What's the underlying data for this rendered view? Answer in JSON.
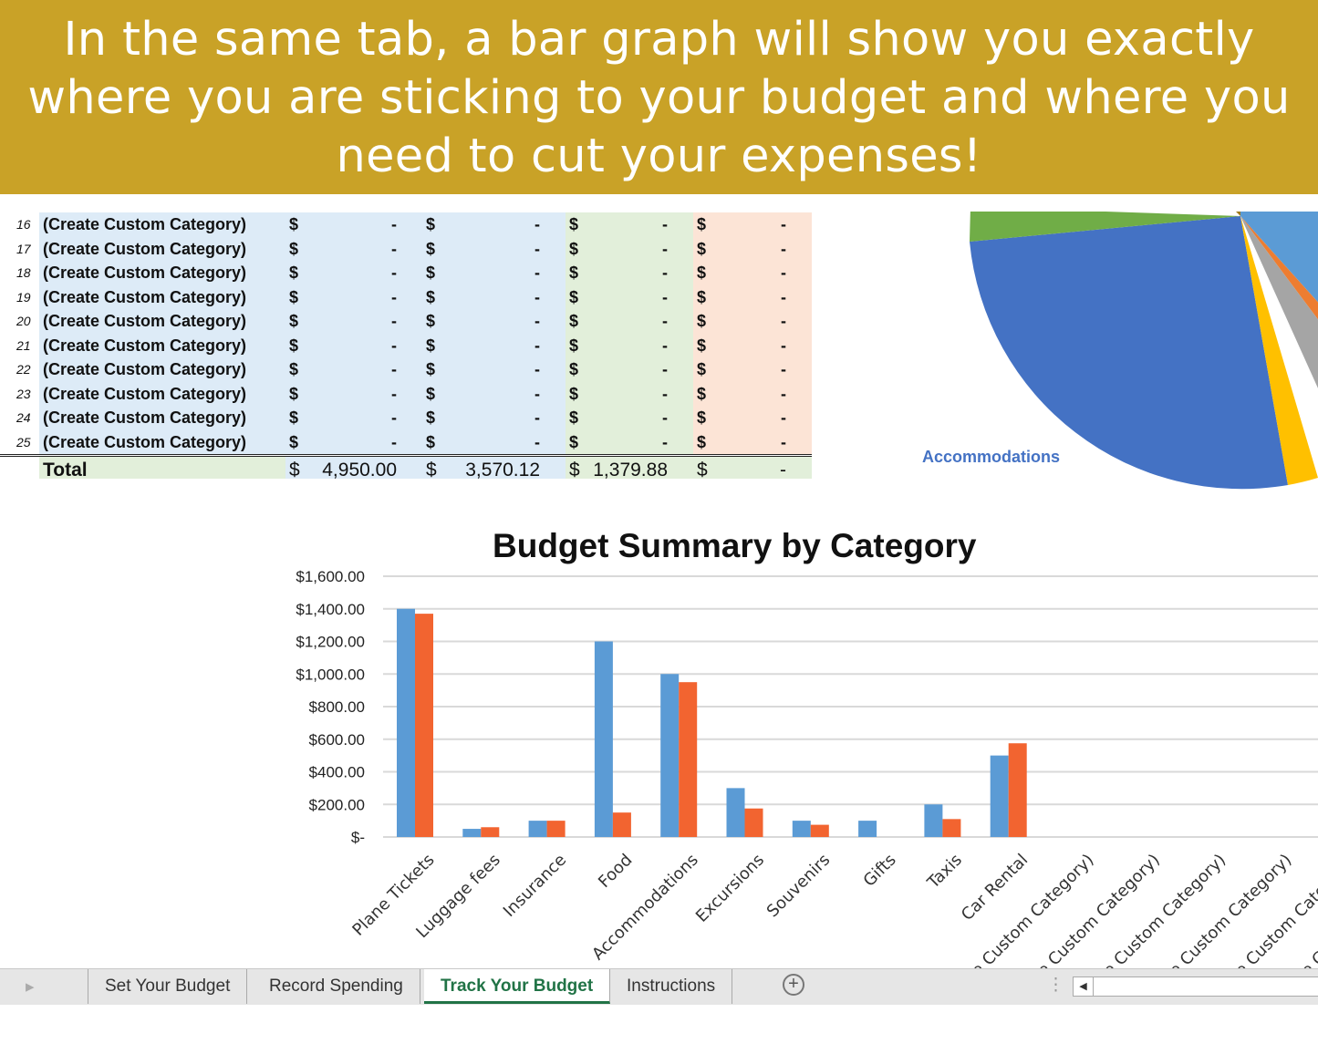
{
  "banner": {
    "text": "In the same tab, a bar graph will show you exactly where you are sticking to your budget and where you need to cut your expenses!"
  },
  "table": {
    "rows": [
      {
        "num": "16",
        "category": "(Create Custom Category)",
        "v1": "-",
        "v2": "-",
        "v3": "-",
        "v4": "-"
      },
      {
        "num": "17",
        "category": "(Create Custom Category)",
        "v1": "-",
        "v2": "-",
        "v3": "-",
        "v4": "-"
      },
      {
        "num": "18",
        "category": "(Create Custom Category)",
        "v1": "-",
        "v2": "-",
        "v3": "-",
        "v4": "-"
      },
      {
        "num": "19",
        "category": "(Create Custom Category)",
        "v1": "-",
        "v2": "-",
        "v3": "-",
        "v4": "-"
      },
      {
        "num": "20",
        "category": "(Create Custom Category)",
        "v1": "-",
        "v2": "-",
        "v3": "-",
        "v4": "-"
      },
      {
        "num": "21",
        "category": "(Create Custom Category)",
        "v1": "-",
        "v2": "-",
        "v3": "-",
        "v4": "-"
      },
      {
        "num": "22",
        "category": "(Create Custom Category)",
        "v1": "-",
        "v2": "-",
        "v3": "-",
        "v4": "-"
      },
      {
        "num": "23",
        "category": "(Create Custom Category)",
        "v1": "-",
        "v2": "-",
        "v3": "-",
        "v4": "-"
      },
      {
        "num": "24",
        "category": "(Create Custom Category)",
        "v1": "-",
        "v2": "-",
        "v3": "-",
        "v4": "-"
      },
      {
        "num": "25",
        "category": "(Create Custom Category)",
        "v1": "-",
        "v2": "-",
        "v3": "-",
        "v4": "-"
      }
    ],
    "currency": "$",
    "total": {
      "label": "Total",
      "v1": "4,950.00",
      "v2": "3,570.12",
      "v3": "1,379.88",
      "v4": "-"
    }
  },
  "pie": {
    "visible_label": "Accommodations"
  },
  "chart_data": {
    "type": "bar",
    "title": "Budget Summary by Category",
    "categories": [
      "Plane Tickets",
      "Luggage fees",
      "Insurance",
      "Food",
      "Accommodations",
      "Excursions",
      "Souvenirs",
      "Gifts",
      "Taxis",
      "Car Rental",
      "(Create Custom Category)",
      "(Create Custom Category)",
      "(Create Custom Category)",
      "(Create Custom Category)",
      "(Create Custom Category)",
      "(Create Custom Category)"
    ],
    "series": [
      {
        "values": [
          1400,
          50,
          100,
          1200,
          1000,
          300,
          100,
          100,
          200,
          500,
          0,
          0,
          0,
          0,
          0,
          0
        ],
        "color": "#5B9BD5"
      },
      {
        "values": [
          1370,
          60,
          100,
          150,
          950,
          175,
          75,
          0,
          110,
          575,
          0,
          0,
          0,
          0,
          0,
          0
        ],
        "color": "#F26430"
      }
    ],
    "yticks": [
      "$-",
      "$200.00",
      "$400.00",
      "$600.00",
      "$800.00",
      "$1,000.00",
      "$1,200.00",
      "$1,400.00",
      "$1,600.00"
    ],
    "ylim": [
      0,
      1600
    ],
    "grid": true
  },
  "tabs": [
    {
      "label": "Set Your Budget",
      "active": false
    },
    {
      "label": "Record Spending",
      "active": false
    },
    {
      "label": "Track Your Budget",
      "active": true
    },
    {
      "label": "Instructions",
      "active": false
    }
  ]
}
